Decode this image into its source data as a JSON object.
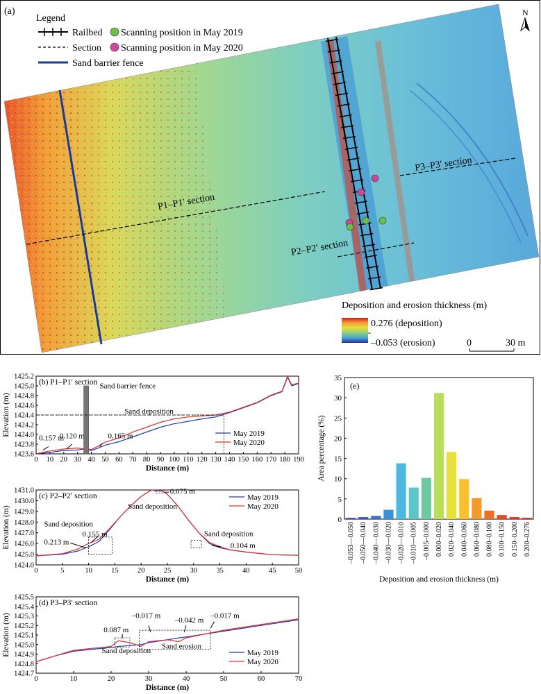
{
  "panel_a": {
    "label": "(a)",
    "legend_title": "Legend",
    "legend_items": {
      "railbed": "Railbed",
      "section": "Section",
      "fence": "Sand barrier fence",
      "scan_2019": "Scanning position in May 2019",
      "scan_2020": "Scanning position in May 2020"
    },
    "north": "N",
    "section_labels": {
      "p1": "P1–P1′ section",
      "p2": "P2–P2′ section",
      "p3": "P3–P3′ section"
    },
    "colorbar_title": "Deposition and erosion thickness (m)",
    "colorbar_max": "0.276 (deposition)",
    "colorbar_min": "–0.053 (erosion)",
    "scale_zero": "0",
    "scale_end": "30 m",
    "colors": {
      "scan_2019": "#6cc04a",
      "scan_2020": "#d0479c",
      "fence": "#1b3a9a"
    }
  },
  "chart_data": [
    {
      "type": "line",
      "panel": "(b)",
      "title": "P1–P1′ section",
      "xlabel": "Distance (m)",
      "ylabel": "Elevation (m)",
      "xlim": [
        0,
        190
      ],
      "ylim": [
        1423.6,
        1425.2
      ],
      "xticks": [
        0,
        10,
        20,
        30,
        40,
        50,
        60,
        70,
        80,
        90,
        100,
        110,
        120,
        130,
        140,
        150,
        160,
        170,
        180,
        190
      ],
      "yticks": [
        1423.6,
        1423.8,
        1424.0,
        1424.2,
        1424.4,
        1424.6,
        1424.8,
        1425.0,
        1425.2
      ],
      "series": [
        {
          "name": "May 2019",
          "color": "#1f3fb4",
          "x": [
            0,
            10,
            20,
            30,
            35,
            40,
            45,
            50,
            60,
            70,
            80,
            90,
            100,
            110,
            120,
            130,
            140,
            150,
            160,
            170,
            178,
            182,
            185,
            190
          ],
          "y": [
            1423.6,
            1423.63,
            1423.67,
            1423.68,
            1423.7,
            1423.67,
            1423.72,
            1423.78,
            1423.85,
            1423.95,
            1424.05,
            1424.15,
            1424.22,
            1424.27,
            1424.32,
            1424.36,
            1424.45,
            1424.55,
            1424.65,
            1424.8,
            1424.88,
            1425.18,
            1425.0,
            1425.05
          ]
        },
        {
          "name": "May 2020",
          "color": "#e03030",
          "x": [
            0,
            10,
            20,
            30,
            35,
            40,
            45,
            50,
            60,
            70,
            80,
            90,
            100,
            110,
            120,
            130,
            140,
            150,
            160,
            170,
            178,
            182,
            185,
            190
          ],
          "y": [
            1423.6,
            1423.66,
            1423.7,
            1423.72,
            1423.7,
            1423.69,
            1423.76,
            1423.84,
            1423.93,
            1424.05,
            1424.15,
            1424.25,
            1424.32,
            1424.36,
            1424.38,
            1424.4,
            1424.46,
            1424.56,
            1424.66,
            1424.81,
            1424.89,
            1425.2,
            1425.02,
            1425.06
          ]
        }
      ],
      "annotations": [
        "Sand barrier fence",
        "Sand deposition",
        "0.157 m",
        "0.120 m",
        "0.165 m"
      ],
      "legend_position": "right"
    },
    {
      "type": "line",
      "panel": "(c)",
      "title": "P2–P2′ section",
      "xlabel": "Distance (m)",
      "ylabel": "Elevation (m)",
      "xlim": [
        0,
        50
      ],
      "ylim": [
        1424.0,
        1431.0
      ],
      "xticks": [
        0,
        5,
        10,
        15,
        20,
        25,
        30,
        35,
        40,
        45,
        50
      ],
      "yticks": [
        1424.0,
        1425.0,
        1426.0,
        1427.0,
        1428.0,
        1429.0,
        1430.0,
        1431.0
      ],
      "series": [
        {
          "name": "May 2019",
          "color": "#1f3fb4",
          "x": [
            0,
            5,
            8,
            10,
            12,
            14,
            16,
            18,
            20,
            22,
            23,
            24,
            25,
            27,
            29,
            31,
            33,
            35,
            37,
            40,
            45,
            50
          ],
          "y": [
            1424.85,
            1425.0,
            1425.3,
            1425.7,
            1426.2,
            1427.3,
            1428.5,
            1429.5,
            1430.4,
            1431.0,
            1430.9,
            1430.9,
            1430.6,
            1429.5,
            1428.2,
            1427.0,
            1426.0,
            1425.6,
            1425.4,
            1425.2,
            1424.95,
            1424.9
          ]
        },
        {
          "name": "May 2020",
          "color": "#e03030",
          "x": [
            0,
            5,
            8,
            10,
            12,
            14,
            16,
            18,
            20,
            22,
            23,
            24,
            25,
            27,
            29,
            31,
            33,
            35,
            37,
            40,
            45,
            50
          ],
          "y": [
            1424.85,
            1425.05,
            1425.5,
            1426.0,
            1426.4,
            1427.4,
            1428.5,
            1429.5,
            1430.4,
            1431.0,
            1431.0,
            1430.95,
            1430.6,
            1429.5,
            1428.2,
            1427.0,
            1426.1,
            1425.7,
            1425.4,
            1425.2,
            1424.95,
            1424.9
          ]
        }
      ],
      "annotations": [
        "Sand deposition",
        "0.213 m",
        "0.155 m",
        "Sand deposition",
        "0.075 m",
        "Sand deposition",
        "0.104 m"
      ],
      "legend_position": "top-right"
    },
    {
      "type": "line",
      "panel": "(d)",
      "title": "P3–P3′ section",
      "xlabel": "Distance (m)",
      "ylabel": "Elevation (m)",
      "xlim": [
        0,
        70
      ],
      "ylim": [
        1424.7,
        1425.5
      ],
      "xticks": [
        0,
        10,
        20,
        30,
        40,
        50,
        60,
        70
      ],
      "yticks": [
        1424.7,
        1424.8,
        1424.9,
        1425.0,
        1425.1,
        1425.2,
        1425.3,
        1425.4,
        1425.5
      ],
      "series": [
        {
          "name": "May 2019",
          "color": "#1f3fb4",
          "x": [
            0,
            5,
            10,
            15,
            20,
            22,
            25,
            28,
            30,
            35,
            38,
            40,
            45,
            50,
            55,
            60,
            65,
            70
          ],
          "y": [
            1424.82,
            1424.88,
            1424.93,
            1424.95,
            1424.97,
            1424.98,
            1424.99,
            1425.0,
            1425.02,
            1425.05,
            1425.07,
            1425.08,
            1425.11,
            1425.14,
            1425.17,
            1425.2,
            1425.23,
            1425.26
          ]
        },
        {
          "name": "May 2020",
          "color": "#e03030",
          "x": [
            0,
            5,
            10,
            15,
            20,
            22,
            25,
            28,
            30,
            35,
            38,
            40,
            45,
            50,
            55,
            60,
            65,
            70
          ],
          "y": [
            1424.82,
            1424.88,
            1424.94,
            1424.96,
            1424.98,
            1425.04,
            1425.02,
            1424.98,
            1425.03,
            1425.05,
            1425.03,
            1425.07,
            1425.11,
            1425.15,
            1425.18,
            1425.21,
            1425.24,
            1425.27
          ]
        }
      ],
      "annotations": [
        "0.087 m",
        "–0.017 m",
        "–0.042 m",
        "–0.017 m",
        "Sand deposition",
        "Sand erosion"
      ],
      "legend_position": "bottom-right"
    },
    {
      "type": "bar",
      "panel": "(e)",
      "xlabel": "Deposition and erosion thickness (m)",
      "ylabel": "Area percentage (%)",
      "ylim": [
        0,
        35
      ],
      "yticks": [
        0,
        5,
        10,
        15,
        20,
        25,
        30,
        35
      ],
      "categories": [
        "–0.053––0.050",
        "–0.050––0.040",
        "–0.040––0.030",
        "–0.030––0.020",
        "–0.020––0.010",
        "–0.010––0.005",
        "–0.005–0.000",
        "0.000–0.020",
        "0.020–0.040",
        "0.040–0.060",
        "0.060–0.080",
        "0.080–0.100",
        "0.100–0.150",
        "0.150–0.200",
        "0.200–0.276"
      ],
      "values": [
        0.3,
        0.5,
        0.8,
        2.3,
        13.8,
        7.8,
        10.2,
        31.2,
        16.6,
        9.9,
        5.2,
        2.1,
        1.0,
        0.5,
        0.3
      ],
      "colors": [
        "#3a3fa8",
        "#3e55bd",
        "#3f6fce",
        "#3a8fd8",
        "#4db8e0",
        "#5ac6c9",
        "#6cc9a0",
        "#b8de5a",
        "#e8e03a",
        "#f7c02c",
        "#f59a26",
        "#ef6e24",
        "#e44a22",
        "#d63520",
        "#c8251e"
      ]
    }
  ]
}
